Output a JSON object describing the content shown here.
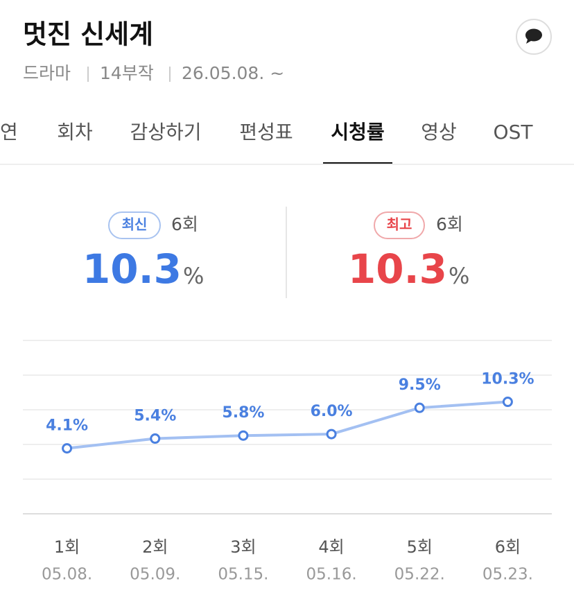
{
  "header": {
    "title": "멋진 신세계",
    "meta": [
      "드라마",
      "14부작",
      "26.05.08. ~"
    ]
  },
  "tabs": {
    "items": [
      "출연",
      "회차",
      "감상하기",
      "편성표",
      "시청률",
      "영상",
      "OST"
    ],
    "active": 4
  },
  "summary": {
    "latest": {
      "badge": "최신",
      "episode": "6회",
      "value": "10.3",
      "unit": "%"
    },
    "best": {
      "badge": "최고",
      "episode": "6회",
      "value": "10.3",
      "unit": "%"
    }
  },
  "chart_data": {
    "type": "line",
    "categories": [
      "1회",
      "2회",
      "3회",
      "4회",
      "5회",
      "6회"
    ],
    "dates": [
      "05.08.",
      "05.09.",
      "05.15.",
      "05.16.",
      "05.22.",
      "05.23."
    ],
    "values": [
      4.1,
      5.4,
      5.8,
      6.0,
      9.5,
      10.3
    ],
    "value_labels": [
      "4.1%",
      "5.4%",
      "5.8%",
      "6.0%",
      "9.5%",
      "10.3%"
    ],
    "color": "#a3c0f2",
    "marker_color": "#4a80e0",
    "ylim": [
      -4.62,
      18.48
    ]
  }
}
